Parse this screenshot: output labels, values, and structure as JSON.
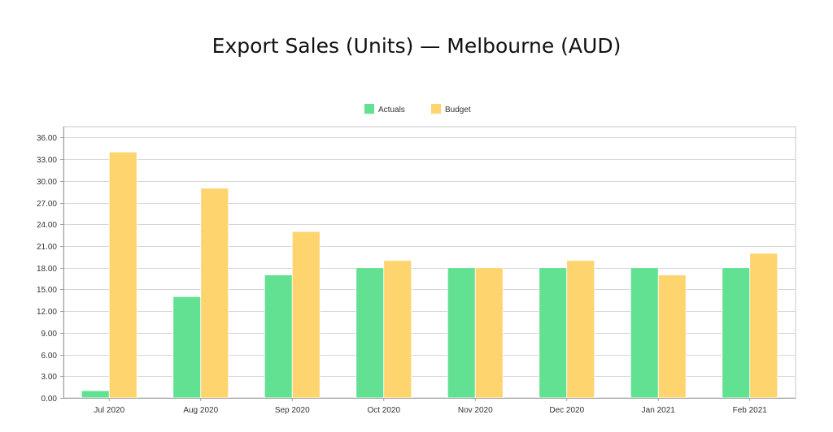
{
  "chart_data": {
    "type": "bar",
    "title": "Export Sales (Units) — Melbourne (AUD)",
    "xlabel": "",
    "ylabel": "",
    "categories": [
      "Jul 2020",
      "Aug 2020",
      "Sep 2020",
      "Oct 2020",
      "Nov 2020",
      "Dec 2020",
      "Jan 2021",
      "Feb 2021"
    ],
    "series": [
      {
        "name": "Actuals",
        "color": "#62e192",
        "values": [
          1,
          14,
          17,
          18,
          18,
          18,
          18,
          18
        ]
      },
      {
        "name": "Budget",
        "color": "#fed46f",
        "values": [
          34,
          29,
          23,
          19,
          18,
          19,
          17,
          20
        ]
      }
    ],
    "ylim": [
      0,
      37.5
    ],
    "yticks": [
      "0.00",
      "3.00",
      "6.00",
      "9.00",
      "12.00",
      "15.00",
      "18.00",
      "21.00",
      "24.00",
      "27.00",
      "30.00",
      "33.00",
      "36.00"
    ],
    "grid": true,
    "legend_position": "top-center"
  }
}
